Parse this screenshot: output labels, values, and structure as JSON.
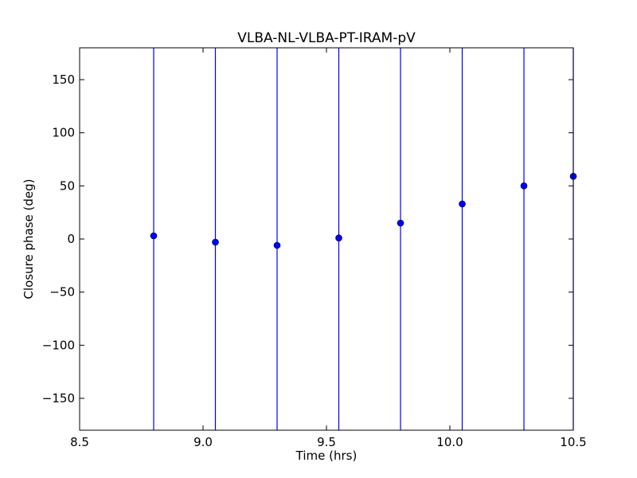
{
  "chart_data": {
    "type": "scatter",
    "title": "VLBA-NL-VLBA-PT-IRAM-pV",
    "xlabel": "Time (hrs)",
    "ylabel": "Closure phase (deg)",
    "xlim": [
      8.5,
      10.5
    ],
    "ylim": [
      -180,
      180
    ],
    "xticks": [
      8.5,
      9.0,
      9.5,
      10.0,
      10.5
    ],
    "xtick_labels": [
      "8.5",
      "9.0",
      "9.5",
      "10.0",
      "10.5"
    ],
    "yticks": [
      -150,
      -100,
      -50,
      0,
      50,
      100,
      150
    ],
    "ytick_labels": [
      "−150",
      "−100",
      "−50",
      "0",
      "50",
      "100",
      "150"
    ],
    "grid": false,
    "color": "#0000ff",
    "points": [
      {
        "x": 8.8,
        "y": 3
      },
      {
        "x": 9.05,
        "y": -3
      },
      {
        "x": 9.3,
        "y": -6
      },
      {
        "x": 9.55,
        "y": 1
      },
      {
        "x": 9.8,
        "y": 15
      },
      {
        "x": 10.05,
        "y": 33
      },
      {
        "x": 10.3,
        "y": 50
      },
      {
        "x": 10.5,
        "y": 59
      }
    ],
    "error_bars_full_range": true
  }
}
